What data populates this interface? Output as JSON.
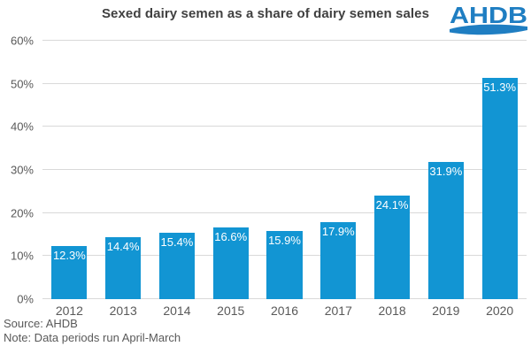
{
  "header": {
    "title": "Sexed dairy semen as a share of dairy semen sales",
    "logo_text": "AHDB"
  },
  "footer": {
    "source": "Source:  AHDB",
    "note": "Note:  Data periods run April-March"
  },
  "colors": {
    "bar": "#1295d3",
    "logo_blue": "#1f7ec2",
    "title_text": "#404040",
    "axis_text": "#595959",
    "gridline": "#d9d9d9",
    "bar_label_text": "#ffffff"
  },
  "chart_data": {
    "type": "bar",
    "title": "Sexed dairy semen as a share of dairy semen sales",
    "categories": [
      "2012",
      "2013",
      "2014",
      "2015",
      "2016",
      "2017",
      "2018",
      "2019",
      "2020"
    ],
    "values": [
      12.3,
      14.4,
      15.4,
      16.6,
      15.9,
      17.9,
      24.1,
      31.9,
      51.3
    ],
    "data_labels": [
      "12.3%",
      "14.4%",
      "15.4%",
      "16.6%",
      "15.9%",
      "17.9%",
      "24.1%",
      "31.9%",
      "51.3%"
    ],
    "xlabel": "",
    "ylabel": "",
    "ylim": [
      0,
      60
    ],
    "yticks": [
      0,
      10,
      20,
      30,
      40,
      50,
      60
    ],
    "ytick_labels": [
      "0%",
      "10%",
      "20%",
      "30%",
      "40%",
      "50%",
      "60%"
    ],
    "grid": true,
    "legend": false
  }
}
